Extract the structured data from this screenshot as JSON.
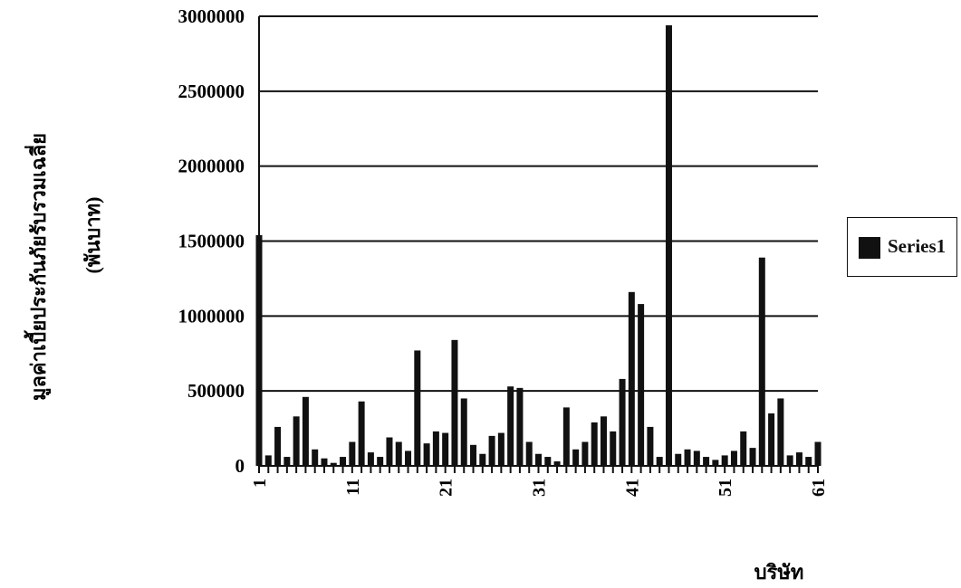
{
  "chart_data": {
    "type": "bar",
    "title": "",
    "xlabel": "บริษัท",
    "ylabel_line1": "มูลค่าเบี้ยประกันภัยรับรวมเฉลี่ย",
    "ylabel_line2": "(พันบาท)",
    "ylim": [
      0,
      3000000
    ],
    "yticks": [
      "0",
      "500000",
      "1000000",
      "1500000",
      "2000000",
      "2500000",
      "3000000"
    ],
    "xticks": [
      "1",
      "11",
      "21",
      "31",
      "41",
      "51",
      "61"
    ],
    "grid": true,
    "legend_position": "right",
    "bar_color": "#111111",
    "series": [
      {
        "name": "Series1",
        "values": [
          1540000,
          70000,
          260000,
          60000,
          330000,
          460000,
          110000,
          50000,
          20000,
          60000,
          160000,
          430000,
          90000,
          60000,
          190000,
          160000,
          100000,
          770000,
          150000,
          230000,
          220000,
          840000,
          450000,
          140000,
          80000,
          200000,
          220000,
          530000,
          520000,
          160000,
          80000,
          60000,
          30000,
          390000,
          110000,
          160000,
          290000,
          330000,
          230000,
          580000,
          1160000,
          1080000,
          260000,
          60000,
          2940000,
          80000,
          110000,
          100000,
          60000,
          40000,
          70000,
          100000,
          230000,
          120000,
          1390000,
          350000,
          450000,
          70000,
          90000,
          60000,
          160000
        ]
      }
    ]
  }
}
